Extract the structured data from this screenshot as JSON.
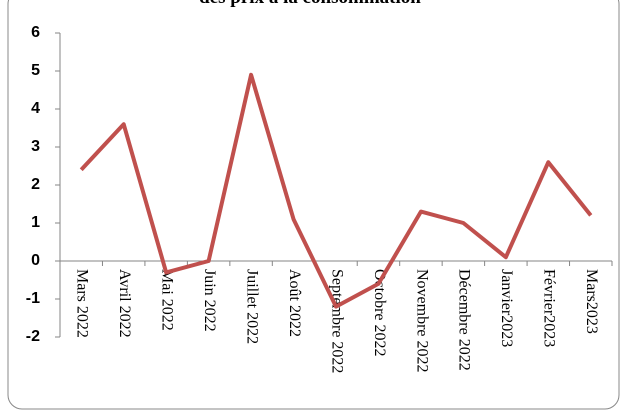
{
  "chart_data": {
    "type": "line",
    "title": "des prix à la consommation",
    "categories": [
      "Mars 2022",
      "Avril 2022",
      "Mai 2022",
      "Juin 2022",
      "Juillet 2022",
      "Août 2022",
      "Septembre 2022",
      "Octobre 2022",
      "Novembre 2022",
      "Décembre 2022",
      "Janvier2023",
      "Février2023",
      "Mars2023"
    ],
    "values": [
      2.4,
      3.6,
      -0.3,
      0,
      4.9,
      1.1,
      -1.2,
      -0.6,
      1.3,
      1.0,
      0.1,
      2.6,
      1.2
    ],
    "color": "#c0504d",
    "ylim": [
      -2,
      6
    ],
    "yticks": [
      -2,
      -1,
      0,
      1,
      2,
      3,
      4,
      5,
      6
    ],
    "grid": false
  }
}
